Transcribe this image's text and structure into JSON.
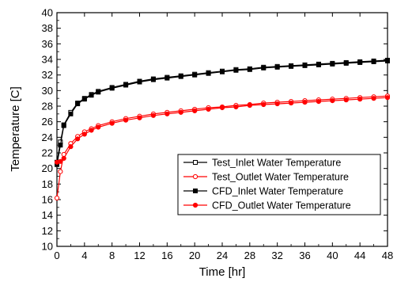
{
  "chart_data": {
    "type": "line",
    "title": "",
    "xlabel": "Time [hr]",
    "ylabel": "Temperature [C]",
    "xlim": [
      0,
      48
    ],
    "ylim": [
      10,
      40
    ],
    "xticks": [
      0,
      4,
      8,
      12,
      16,
      20,
      24,
      28,
      32,
      36,
      40,
      44,
      48
    ],
    "yticks": [
      10,
      12,
      14,
      16,
      18,
      20,
      22,
      24,
      26,
      28,
      30,
      32,
      34,
      36,
      38,
      40
    ],
    "grid": false,
    "legend_position": "lower-right",
    "series": [
      {
        "name": "Test_Inlet Water Temperature",
        "color": "#000000",
        "marker": "square-open",
        "x": [
          0,
          0.5,
          1,
          2,
          3,
          4,
          5,
          6,
          8,
          10,
          12,
          14,
          16,
          18,
          20,
          22,
          24,
          26,
          28,
          30,
          32,
          34,
          36,
          38,
          40,
          42,
          44,
          46,
          48
        ],
        "y": [
          20.8,
          23.4,
          25.6,
          27.2,
          28.4,
          29.0,
          29.5,
          29.9,
          30.4,
          30.8,
          31.2,
          31.5,
          31.7,
          31.9,
          32.1,
          32.3,
          32.5,
          32.7,
          32.8,
          33.0,
          33.1,
          33.2,
          33.3,
          33.4,
          33.5,
          33.6,
          33.7,
          33.8,
          33.9
        ]
      },
      {
        "name": "Test_Outlet Water Temperature",
        "color": "#ff0000",
        "marker": "circle-open",
        "x": [
          0,
          0.5,
          1,
          2,
          3,
          4,
          5,
          6,
          8,
          10,
          12,
          14,
          16,
          18,
          20,
          22,
          24,
          26,
          28,
          30,
          32,
          34,
          36,
          38,
          40,
          42,
          44,
          46,
          48
        ],
        "y": [
          16.2,
          19.6,
          21.8,
          23.2,
          24.1,
          24.7,
          25.1,
          25.5,
          26.0,
          26.4,
          26.7,
          27.0,
          27.2,
          27.4,
          27.6,
          27.8,
          27.9,
          28.1,
          28.2,
          28.4,
          28.5,
          28.6,
          28.7,
          28.8,
          28.9,
          29.0,
          29.1,
          29.2,
          29.3
        ]
      },
      {
        "name": "CFD_Inlet Water Temperature",
        "color": "#000000",
        "marker": "square-filled",
        "x": [
          0,
          0.5,
          1,
          2,
          3,
          4,
          5,
          6,
          8,
          10,
          12,
          14,
          16,
          18,
          20,
          22,
          24,
          26,
          28,
          30,
          32,
          34,
          36,
          38,
          40,
          42,
          44,
          46,
          48
        ],
        "y": [
          20.5,
          23.0,
          25.5,
          27.0,
          28.3,
          28.9,
          29.4,
          29.8,
          30.3,
          30.7,
          31.1,
          31.4,
          31.6,
          31.8,
          32.0,
          32.2,
          32.4,
          32.6,
          32.7,
          32.9,
          33.0,
          33.1,
          33.2,
          33.3,
          33.4,
          33.5,
          33.6,
          33.7,
          33.8
        ]
      },
      {
        "name": "CFD_Outlet Water Temperature",
        "color": "#ff0000",
        "marker": "circle-filled",
        "x": [
          0,
          0.5,
          1,
          2,
          3,
          4,
          5,
          6,
          8,
          10,
          12,
          14,
          16,
          18,
          20,
          22,
          24,
          26,
          28,
          30,
          32,
          34,
          36,
          38,
          40,
          42,
          44,
          46,
          48
        ],
        "y": [
          20.8,
          20.9,
          21.3,
          22.8,
          23.8,
          24.4,
          24.9,
          25.3,
          25.8,
          26.2,
          26.5,
          26.8,
          27.0,
          27.2,
          27.4,
          27.6,
          27.8,
          27.9,
          28.1,
          28.2,
          28.3,
          28.4,
          28.5,
          28.6,
          28.7,
          28.8,
          28.9,
          29.0,
          29.1
        ]
      }
    ]
  }
}
